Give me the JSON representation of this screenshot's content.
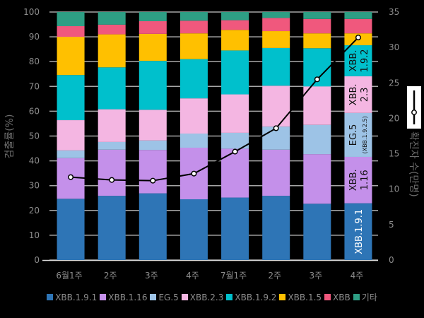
{
  "chart_data": {
    "type": "bar",
    "stacked": true,
    "title": "",
    "xlabel": "",
    "ylabel": "검출률(%)",
    "y2label": "확진자 수(만명)",
    "ylim": [
      0,
      100
    ],
    "y2lim": [
      0,
      35
    ],
    "yticks": [
      "0",
      "10",
      "20",
      "30",
      "40",
      "50",
      "60",
      "70",
      "80",
      "90",
      "100"
    ],
    "y2ticks": [
      "0",
      "5",
      "10",
      "15",
      "20",
      "25",
      "30",
      "35"
    ],
    "grid": true,
    "legend_position": "bottom",
    "categories": [
      "6월1주",
      "2주",
      "3주",
      "4주",
      "7월1주",
      "2주",
      "3주",
      "4주"
    ],
    "series": [
      {
        "name": "XBB.1.9.1",
        "color": "#2e75b6",
        "values": [
          24.7,
          25.9,
          26.9,
          24.5,
          25.2,
          25.9,
          22.7,
          22.9
        ]
      },
      {
        "name": "XBB.1.16",
        "color": "#c490ea",
        "values": [
          16.4,
          18.6,
          17.5,
          20.8,
          19.7,
          18.6,
          20.0,
          18.7
        ]
      },
      {
        "name": "EG.5",
        "color": "#9dc3e6",
        "values": [
          3.1,
          3.1,
          3.8,
          5.7,
          6.4,
          9.3,
          11.8,
          17.7
        ]
      },
      {
        "name": "XBB.2.3",
        "color": "#f4b6e2",
        "values": [
          12.2,
          13.2,
          12.4,
          14.2,
          15.5,
          16.5,
          15.5,
          14.8
        ]
      },
      {
        "name": "XBB.1.9.2",
        "color": "#00c0cc",
        "values": [
          18.2,
          16.9,
          19.7,
          15.8,
          17.7,
          15.2,
          15.4,
          12.5
        ]
      },
      {
        "name": "XBB.1.5",
        "color": "#ffc000",
        "values": [
          15.4,
          13.3,
          10.9,
          10.4,
          8.3,
          6.8,
          6.0,
          4.8
        ]
      },
      {
        "name": "XBB",
        "color": "#f0587d",
        "values": [
          4.3,
          3.9,
          5.1,
          5.1,
          3.9,
          5.3,
          5.8,
          5.8
        ]
      },
      {
        "name": "기타",
        "color": "#2e9e84",
        "values": [
          5.7,
          5.1,
          3.7,
          3.5,
          3.3,
          2.4,
          2.8,
          2.8
        ]
      }
    ],
    "line": {
      "name": "확진자 수(만명)",
      "axis": "right",
      "color": "#000000",
      "values": [
        11.7,
        11.3,
        11.2,
        12.2,
        15.3,
        18.6,
        25.5,
        31.4
      ]
    },
    "bar_annotations": {
      "category_index": 7,
      "labels": [
        {
          "series": "XBB.1.9.1",
          "lines": [
            "XBB.1.9.1"
          ],
          "color": "white"
        },
        {
          "series": "XBB.1.16",
          "lines": [
            "XBB.",
            "1.16"
          ],
          "color": "dark"
        },
        {
          "series": "EG.5",
          "lines": [
            "EG.5",
            "(XBB.1.9.2.5)"
          ],
          "color": "dark"
        },
        {
          "series": "XBB.2.3",
          "lines": [
            "XBB.",
            "2.3"
          ],
          "color": "dark"
        },
        {
          "series": "XBB.1.9.2",
          "lines": [
            "XBB.",
            "1.9.2"
          ],
          "color": "dark"
        }
      ]
    }
  }
}
